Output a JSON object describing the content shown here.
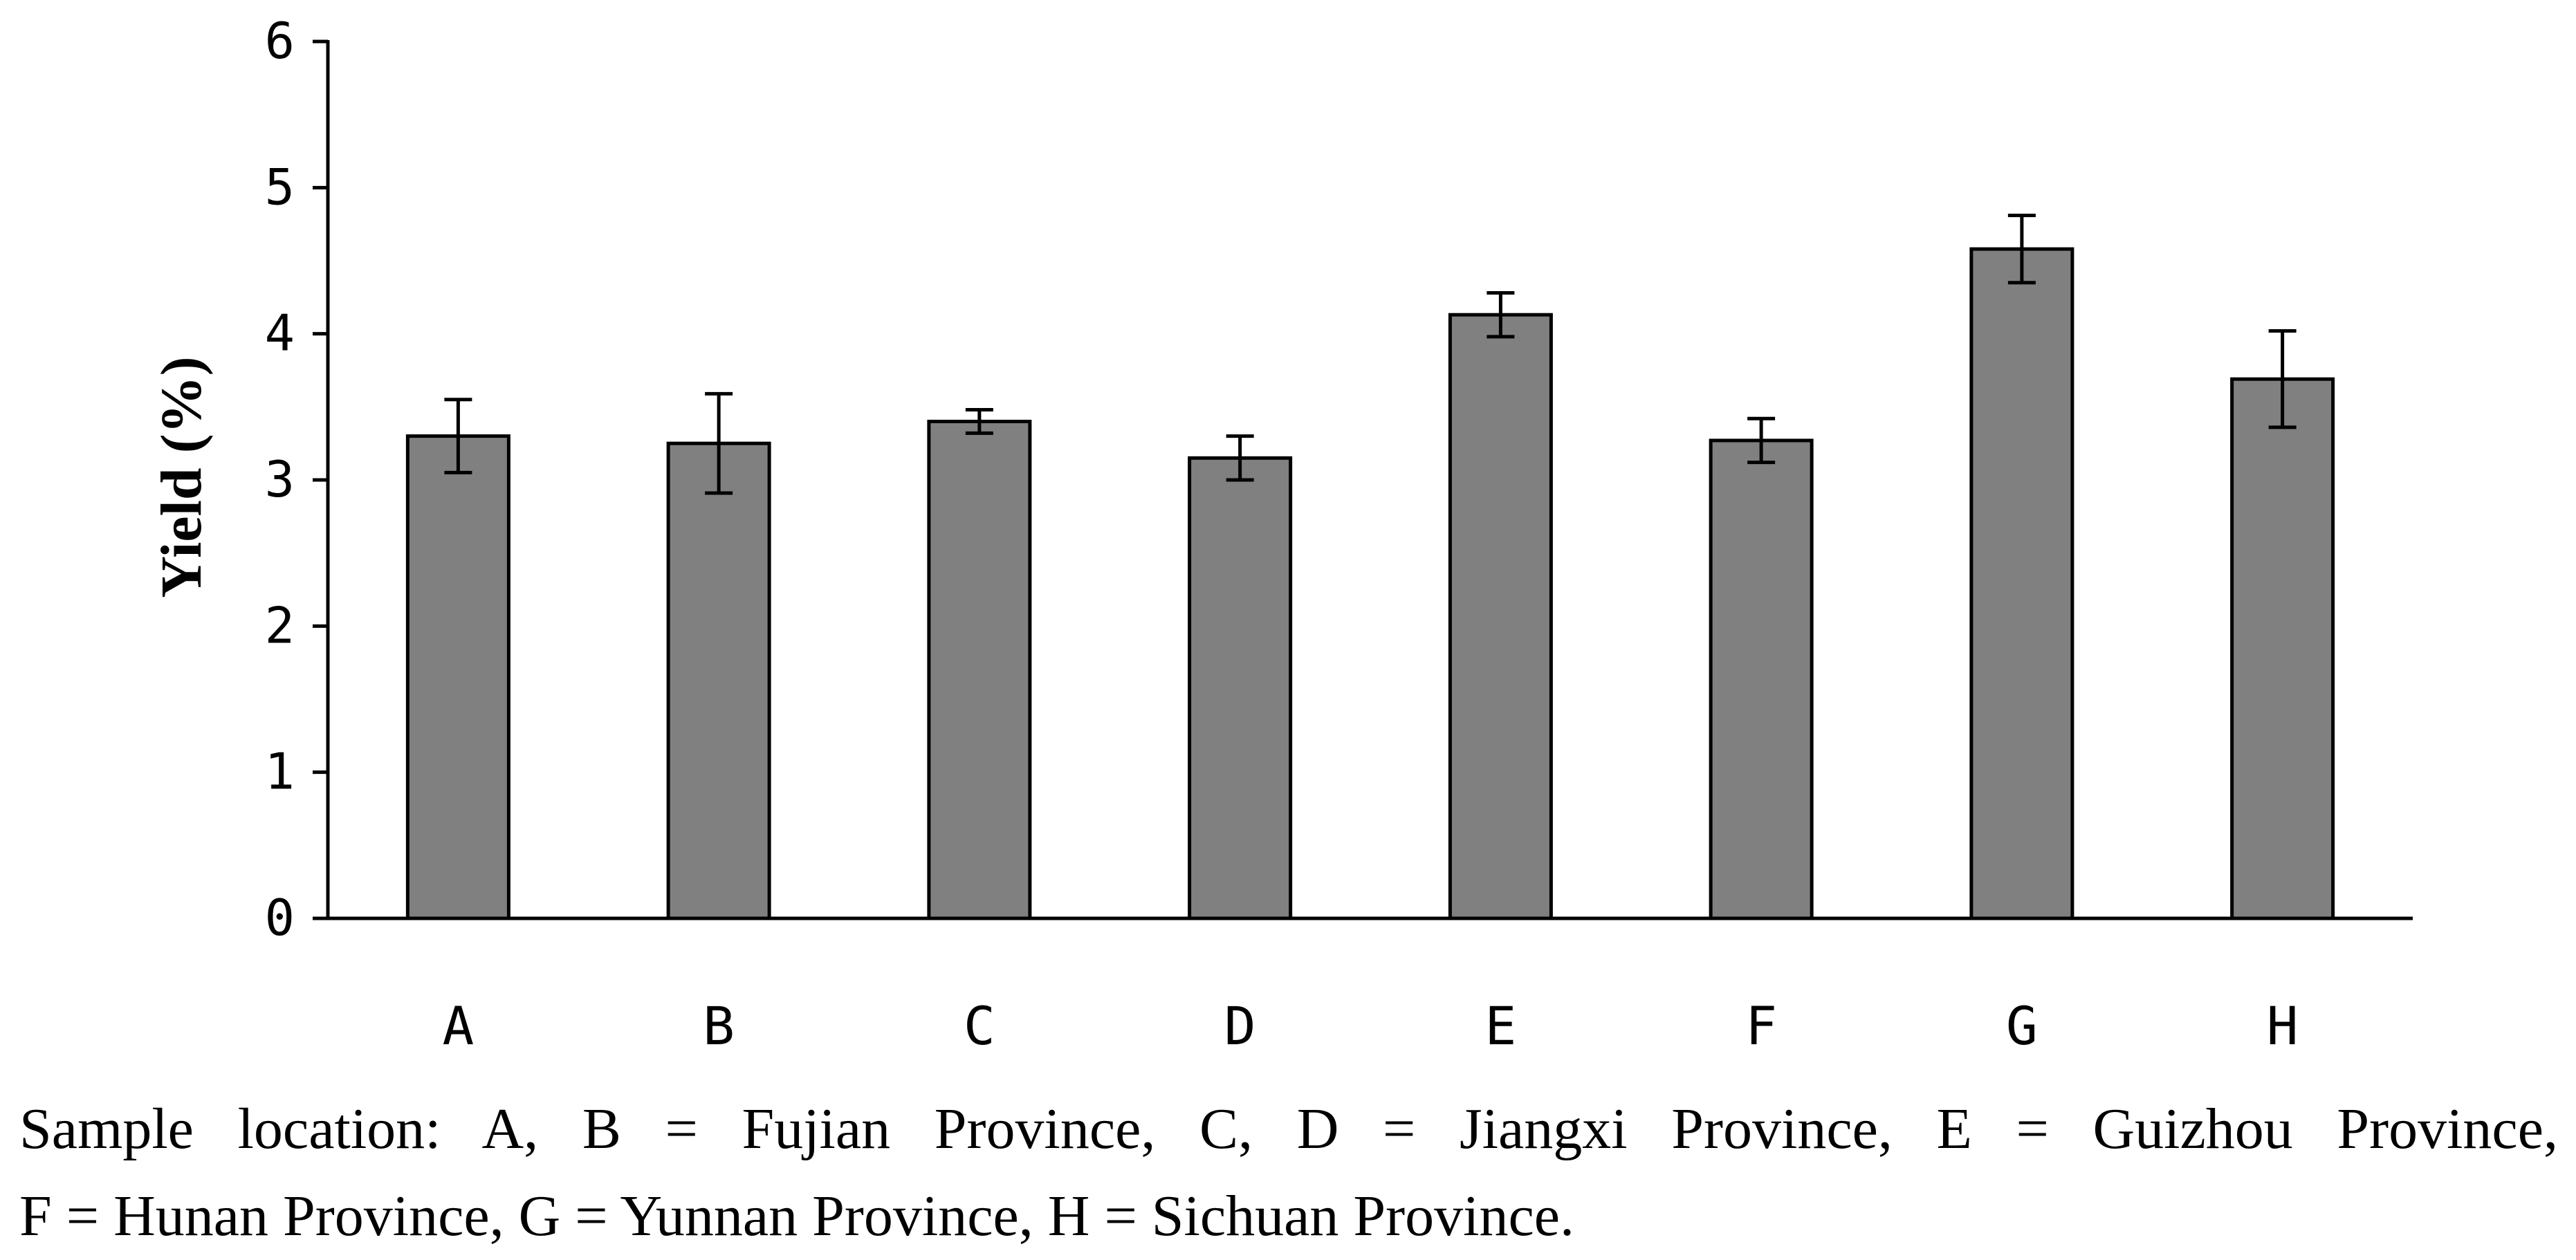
{
  "chart_data": {
    "type": "bar",
    "categories": [
      "A",
      "B",
      "C",
      "D",
      "E",
      "F",
      "G",
      "H"
    ],
    "values": [
      3.3,
      3.25,
      3.4,
      3.15,
      4.13,
      3.27,
      4.58,
      3.69
    ],
    "errors": [
      0.25,
      0.34,
      0.08,
      0.15,
      0.15,
      0.15,
      0.23,
      0.33
    ],
    "title": "",
    "xlabel": "",
    "ylabel": "Yield (%)",
    "ylim": [
      0,
      6
    ],
    "yticks": [
      "0",
      "1",
      "2",
      "3",
      "4",
      "5",
      "6"
    ],
    "bar_color": "#808080",
    "grid": false,
    "legend": "none"
  },
  "caption": {
    "line1": "Sample location: A, B = Fujian Province, C, D = Jiangxi Province, E = Guizhou Province,",
    "line2": "F = Hunan Province, G = Yunnan Province, H = Sichuan Province."
  }
}
